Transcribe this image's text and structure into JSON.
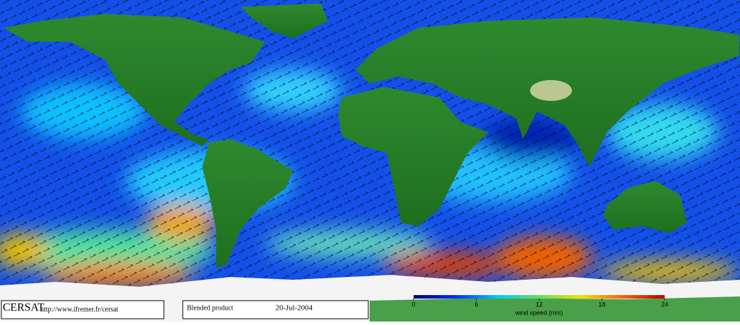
{
  "footer": {
    "logo": "CERSAT",
    "url": "http://www.ifremer.fr/cersat",
    "product": "Blended product",
    "date": "20-Jul-2004"
  },
  "colorbar": {
    "label": "wind speed (m/s)",
    "lim": [
      0,
      24
    ],
    "ticks": [
      0,
      6,
      12,
      18,
      24
    ],
    "colors": [
      "#000070",
      "#0030ff",
      "#00c8ff",
      "#60e060",
      "#f0e000",
      "#ff6000",
      "#c00000"
    ]
  }
}
